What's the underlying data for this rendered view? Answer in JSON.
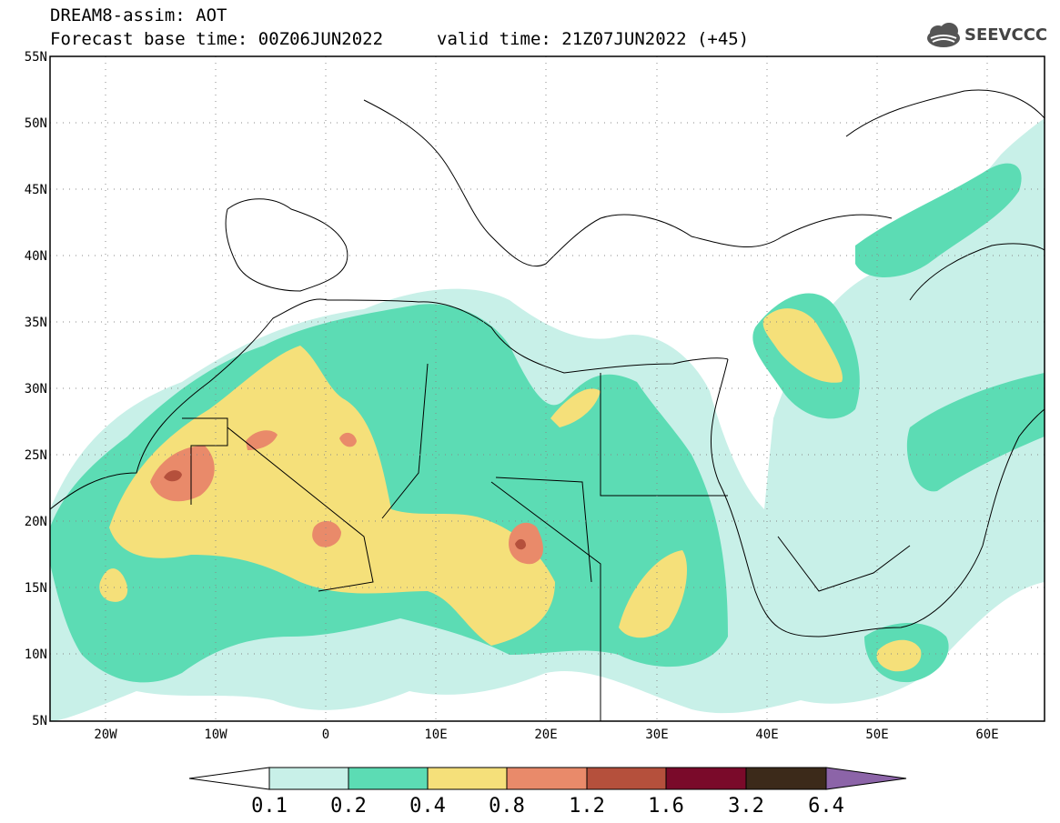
{
  "header": {
    "title": "DREAM8-assim: AOT",
    "base_time": "Forecast base time: 00Z06JUN2022",
    "valid_time": "valid time: 21Z07JUN2022 (+45)"
  },
  "logo": {
    "text": "SEEVCCC",
    "icon": "cloud-icon"
  },
  "map": {
    "lat_labels": [
      "55N",
      "50N",
      "45N",
      "40N",
      "35N",
      "30N",
      "25N",
      "20N",
      "15N",
      "10N",
      "5N"
    ],
    "lon_labels": [
      "20W",
      "10W",
      "0",
      "10E",
      "20E",
      "30E",
      "40E",
      "50E",
      "60E"
    ],
    "lat_range": [
      5,
      55
    ],
    "lon_range": [
      -25,
      65
    ],
    "grid": "dotted"
  },
  "colorbar": {
    "labels": [
      "0.1",
      "0.2",
      "0.4",
      "0.8",
      "1.2",
      "1.6",
      "3.2",
      "6.4"
    ],
    "colors": [
      "#ffffff",
      "#c8f0e8",
      "#5cdcb4",
      "#f5e07a",
      "#e98a6a",
      "#b5503c",
      "#7a0a2a",
      "#3c2a1a",
      "#8c64a8"
    ]
  }
}
